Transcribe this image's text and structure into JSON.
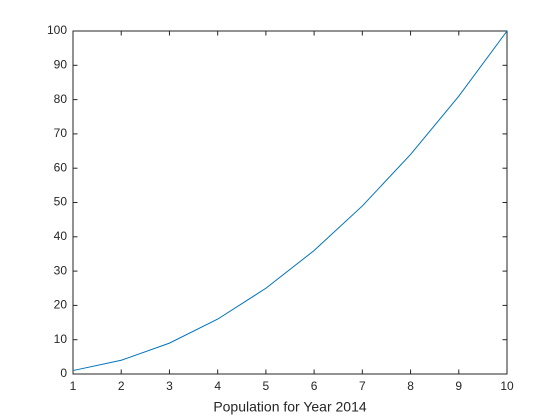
{
  "chart_data": {
    "type": "line",
    "xlabel": "Population for Year 2014",
    "x": [
      1,
      2,
      3,
      4,
      5,
      6,
      7,
      8,
      9,
      10
    ],
    "series": [
      {
        "color": "#0072bd",
        "values": [
          1,
          4,
          9,
          16,
          25,
          36,
          49,
          64,
          81,
          100
        ]
      }
    ],
    "xlim": [
      1,
      10
    ],
    "xticks": [
      1,
      2,
      3,
      4,
      5,
      6,
      7,
      8,
      9,
      10
    ],
    "ylim": [
      0,
      100
    ],
    "yticks": [
      0,
      10,
      20,
      30,
      40,
      50,
      60,
      70,
      80,
      90,
      100
    ],
    "grid": false
  }
}
